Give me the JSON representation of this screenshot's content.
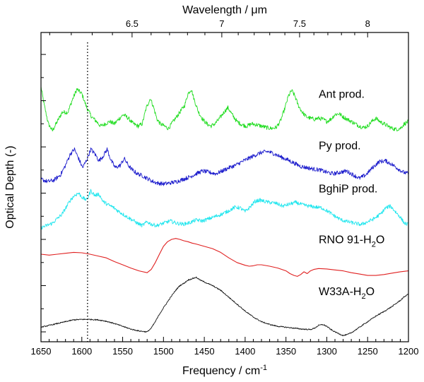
{
  "chart_data": {
    "type": "line",
    "title": "",
    "xlabel": "Frequency / cm",
    "xlabel_sup": "-1",
    "ylabel": "Optical Depth (-)",
    "top_axis_label": "Wavelength / μm",
    "xlim": [
      1650,
      1200
    ],
    "x_ticks": [
      1650,
      1600,
      1550,
      1500,
      1450,
      1400,
      1350,
      1300,
      1250,
      1200
    ],
    "x_tick_labels": [
      "1650",
      "1600",
      "1550",
      "1500",
      "1450",
      "1400",
      "1350",
      "1300",
      "1250",
      "1200"
    ],
    "top_ticks_um": [
      6.5,
      7,
      7.5,
      8
    ],
    "top_tick_labels": [
      "6.5",
      "7",
      "7.5",
      "8"
    ],
    "top_minor_ticks_um": [
      6.1,
      6.2,
      6.3,
      6.4,
      6.6,
      6.7,
      6.8,
      6.9,
      7.1,
      7.2,
      7.3,
      7.4,
      7.6,
      7.7,
      7.8,
      7.9
    ],
    "y_major_ticks": [
      0,
      1,
      2,
      3,
      4,
      5,
      6
    ],
    "ylim": [
      0,
      6.2
    ],
    "vertical_reference_line": {
      "x": 1593,
      "style": "dotted"
    },
    "series": [
      {
        "name": "Ant prod.",
        "label": "Ant prod.",
        "color": "#22dd22",
        "noise": 0.045,
        "x": [
          1650,
          1646,
          1641,
          1636,
          1630,
          1624,
          1617,
          1612,
          1606,
          1600,
          1594,
          1588,
          1582,
          1577,
          1571,
          1566,
          1560,
          1555,
          1549,
          1543,
          1537,
          1531,
          1526,
          1521,
          1516,
          1512,
          1508,
          1504,
          1499,
          1494,
          1488,
          1482,
          1478,
          1474,
          1470,
          1466,
          1462,
          1457,
          1452,
          1447,
          1442,
          1437,
          1432,
          1426,
          1421,
          1416,
          1410,
          1404,
          1398,
          1392,
          1386,
          1380,
          1374,
          1368,
          1362,
          1357,
          1352,
          1347,
          1343,
          1339,
          1335,
          1330,
          1325,
          1320,
          1315,
          1310,
          1305,
          1300,
          1295,
          1290,
          1285,
          1280,
          1275,
          1270,
          1265,
          1260,
          1255,
          1250,
          1245,
          1240,
          1235,
          1230,
          1225,
          1220,
          1215,
          1210,
          1205,
          1200
        ],
        "y": [
          5.3,
          4.9,
          4.5,
          4.35,
          4.55,
          4.75,
          4.75,
          5.0,
          5.25,
          5.15,
          4.85,
          4.65,
          4.55,
          4.45,
          4.5,
          4.55,
          4.5,
          4.6,
          4.7,
          4.62,
          4.5,
          4.45,
          4.5,
          4.85,
          5.05,
          4.85,
          4.6,
          4.5,
          4.45,
          4.4,
          4.55,
          4.7,
          4.8,
          4.9,
          5.15,
          5.25,
          5.0,
          4.75,
          4.6,
          4.5,
          4.45,
          4.5,
          4.6,
          4.75,
          4.85,
          4.7,
          4.55,
          4.48,
          4.45,
          4.5,
          4.48,
          4.45,
          4.42,
          4.4,
          4.42,
          4.55,
          4.8,
          5.1,
          5.22,
          5.1,
          4.9,
          4.75,
          4.65,
          4.62,
          4.6,
          4.62,
          4.6,
          4.55,
          4.6,
          4.7,
          4.72,
          4.65,
          4.6,
          4.55,
          4.5,
          4.45,
          4.42,
          4.45,
          4.55,
          4.62,
          4.55,
          4.5,
          4.45,
          4.4,
          4.38,
          4.4,
          4.5,
          4.55
        ]
      },
      {
        "name": "Py prod.",
        "label": "Py prod.",
        "color": "#1a1acc",
        "noise": 0.045,
        "x": [
          1650,
          1642,
          1634,
          1626,
          1620,
          1614,
          1609,
          1604,
          1599,
          1594,
          1589,
          1584,
          1579,
          1574,
          1569,
          1564,
          1559,
          1553,
          1548,
          1543,
          1538,
          1532,
          1526,
          1520,
          1514,
          1508,
          1500,
          1492,
          1484,
          1476,
          1468,
          1460,
          1452,
          1444,
          1436,
          1428,
          1420,
          1412,
          1404,
          1396,
          1388,
          1380,
          1372,
          1364,
          1356,
          1348,
          1340,
          1332,
          1324,
          1316,
          1308,
          1300,
          1292,
          1284,
          1276,
          1268,
          1260,
          1252,
          1244,
          1236,
          1228,
          1220,
          1212,
          1206,
          1200
        ],
        "y": [
          3.3,
          3.25,
          3.28,
          3.4,
          3.6,
          3.85,
          3.95,
          3.75,
          3.55,
          3.72,
          3.95,
          3.85,
          3.7,
          3.8,
          3.95,
          3.7,
          3.55,
          3.6,
          3.75,
          3.6,
          3.5,
          3.42,
          3.38,
          3.32,
          3.26,
          3.22,
          3.2,
          3.22,
          3.25,
          3.3,
          3.35,
          3.42,
          3.48,
          3.45,
          3.42,
          3.48,
          3.55,
          3.6,
          3.68,
          3.75,
          3.82,
          3.88,
          3.9,
          3.85,
          3.78,
          3.72,
          3.65,
          3.58,
          3.55,
          3.52,
          3.5,
          3.45,
          3.42,
          3.45,
          3.48,
          3.4,
          3.32,
          3.4,
          3.55,
          3.68,
          3.7,
          3.62,
          3.52,
          3.45,
          3.42
        ]
      },
      {
        "name": "BghiP prod.",
        "label": "BghiP prod.",
        "color": "#22e6ee",
        "noise": 0.04,
        "x": [
          1650,
          1643,
          1636,
          1630,
          1624,
          1619,
          1614,
          1609,
          1604,
          1599,
          1594,
          1589,
          1584,
          1579,
          1574,
          1568,
          1562,
          1556,
          1550,
          1544,
          1538,
          1532,
          1526,
          1520,
          1514,
          1508,
          1500,
          1492,
          1484,
          1476,
          1468,
          1460,
          1452,
          1444,
          1436,
          1428,
          1420,
          1412,
          1406,
          1400,
          1394,
          1388,
          1382,
          1376,
          1370,
          1362,
          1354,
          1346,
          1338,
          1330,
          1322,
          1314,
          1306,
          1298,
          1290,
          1282,
          1274,
          1266,
          1258,
          1250,
          1242,
          1234,
          1228,
          1222,
          1216,
          1210,
          1205,
          1200
        ],
        "y": [
          2.25,
          2.3,
          2.35,
          2.45,
          2.55,
          2.7,
          2.85,
          2.95,
          3.0,
          2.9,
          2.85,
          3.05,
          2.95,
          2.98,
          2.82,
          2.75,
          2.7,
          2.62,
          2.55,
          2.48,
          2.42,
          2.35,
          2.3,
          2.38,
          2.32,
          2.3,
          2.35,
          2.4,
          2.35,
          2.33,
          2.36,
          2.42,
          2.4,
          2.45,
          2.5,
          2.55,
          2.62,
          2.7,
          2.68,
          2.6,
          2.7,
          2.82,
          2.85,
          2.82,
          2.8,
          2.78,
          2.72,
          2.76,
          2.8,
          2.75,
          2.72,
          2.7,
          2.68,
          2.6,
          2.5,
          2.42,
          2.38,
          2.35,
          2.32,
          2.38,
          2.45,
          2.55,
          2.68,
          2.72,
          2.6,
          2.48,
          2.35,
          2.32
        ]
      },
      {
        "name": "RNO 91-H2O",
        "label": "RNO 91-H",
        "label_sub": "2",
        "label_suffix": "O",
        "color": "#e02020",
        "noise": 0.0,
        "x": [
          1650,
          1640,
          1630,
          1620,
          1610,
          1600,
          1590,
          1580,
          1570,
          1560,
          1550,
          1540,
          1530,
          1520,
          1515,
          1510,
          1505,
          1500,
          1495,
          1490,
          1485,
          1480,
          1475,
          1470,
          1465,
          1460,
          1450,
          1440,
          1430,
          1420,
          1410,
          1400,
          1395,
          1390,
          1385,
          1380,
          1370,
          1360,
          1350,
          1345,
          1340,
          1336,
          1332,
          1328,
          1324,
          1320,
          1316,
          1310,
          1300,
          1290,
          1280,
          1270,
          1260,
          1250,
          1240,
          1230,
          1220,
          1210,
          1200
        ],
        "y": [
          1.68,
          1.66,
          1.68,
          1.7,
          1.72,
          1.71,
          1.68,
          1.64,
          1.6,
          1.52,
          1.45,
          1.38,
          1.32,
          1.28,
          1.35,
          1.5,
          1.68,
          1.85,
          1.95,
          2.0,
          2.02,
          2.0,
          1.97,
          1.95,
          1.92,
          1.9,
          1.85,
          1.8,
          1.72,
          1.6,
          1.5,
          1.44,
          1.42,
          1.43,
          1.45,
          1.45,
          1.42,
          1.38,
          1.32,
          1.26,
          1.22,
          1.2,
          1.24,
          1.3,
          1.26,
          1.32,
          1.35,
          1.37,
          1.36,
          1.34,
          1.32,
          1.28,
          1.25,
          1.22,
          1.22,
          1.24,
          1.27,
          1.3,
          1.32
        ]
      },
      {
        "name": "W33A-H2O",
        "label": "W33A-H",
        "label_sub": "2",
        "label_suffix": "O",
        "color": "#111111",
        "noise": 0.012,
        "x": [
          1650,
          1640,
          1630,
          1620,
          1610,
          1600,
          1590,
          1580,
          1570,
          1560,
          1550,
          1540,
          1530,
          1520,
          1515,
          1510,
          1505,
          1500,
          1495,
          1490,
          1485,
          1480,
          1475,
          1470,
          1465,
          1460,
          1455,
          1450,
          1440,
          1430,
          1420,
          1410,
          1400,
          1390,
          1380,
          1370,
          1360,
          1350,
          1340,
          1330,
          1320,
          1315,
          1310,
          1305,
          1300,
          1295,
          1290,
          1285,
          1280,
          1275,
          1270,
          1260,
          1250,
          1240,
          1230,
          1220,
          1210,
          1205,
          1200
        ],
        "y": [
          0.1,
          0.14,
          0.18,
          0.22,
          0.26,
          0.27,
          0.27,
          0.26,
          0.23,
          0.18,
          0.12,
          0.06,
          0.02,
          0.0,
          0.08,
          0.22,
          0.38,
          0.52,
          0.65,
          0.78,
          0.9,
          1.0,
          1.05,
          1.12,
          1.15,
          1.18,
          1.12,
          1.08,
          1.0,
          0.9,
          0.75,
          0.6,
          0.45,
          0.32,
          0.22,
          0.16,
          0.12,
          0.1,
          0.08,
          0.06,
          0.05,
          0.08,
          0.14,
          0.16,
          0.12,
          0.05,
          0.0,
          -0.04,
          -0.08,
          -0.06,
          -0.02,
          0.1,
          0.22,
          0.34,
          0.44,
          0.55,
          0.68,
          0.76,
          0.82
        ]
      }
    ]
  }
}
